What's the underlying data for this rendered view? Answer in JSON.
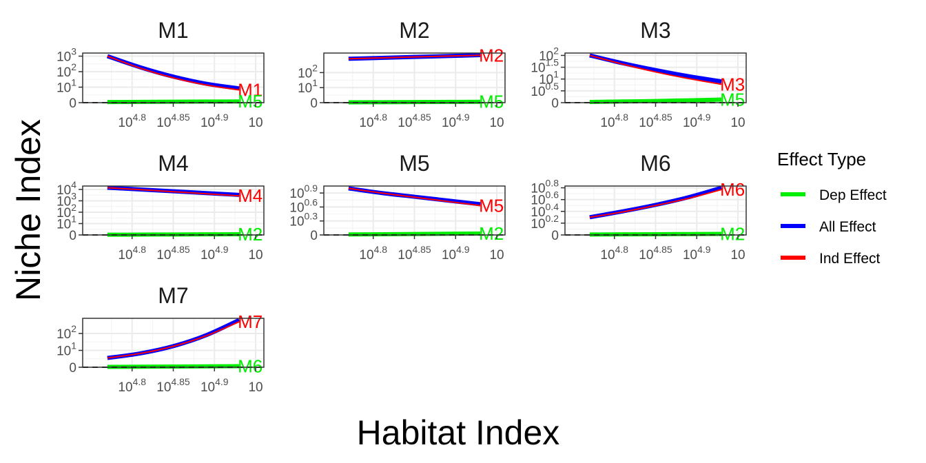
{
  "chart_data": {
    "type": "line",
    "xlabel": "Habitat Index",
    "ylabel": "Niche Index",
    "x_scale": "log10",
    "xlim": [
      4.74,
      4.96
    ],
    "x_ticks": [
      {
        "base": "10",
        "exp": "4.8"
      },
      {
        "base": "10",
        "exp": "4.85"
      },
      {
        "base": "10",
        "exp": "4.9"
      },
      {
        "base": "10",
        "exp": ""
      }
    ],
    "x_tick_values": [
      4.8,
      4.85,
      4.9,
      4.95
    ],
    "legend": {
      "title": "Effect Type",
      "position": "right",
      "entries": [
        {
          "label": "Dep Effect",
          "color": "#00ee00"
        },
        {
          "label": "All Effect",
          "color": "#0000ff"
        },
        {
          "label": "Ind Effect",
          "color": "#ff0000"
        }
      ]
    },
    "grid": true,
    "reference_line": {
      "y": 0,
      "style": "dashed"
    },
    "panels": [
      {
        "title": "M1",
        "y_scale": "log10(y+1)",
        "y_ticks": [
          {
            "base": "0",
            "exp": ""
          },
          {
            "base": "10",
            "exp": "1"
          },
          {
            "base": "10",
            "exp": "2"
          },
          {
            "base": "10",
            "exp": "3"
          }
        ],
        "y_tick_values": [
          0,
          1,
          2,
          3
        ],
        "ylim": [
          0,
          3.2
        ],
        "series": [
          {
            "name": "All Effect",
            "x": [
              4.77,
              4.81,
              4.85,
              4.89,
              4.93
            ],
            "y": [
              3.0,
              2.28,
              1.68,
              1.22,
              0.92
            ]
          },
          {
            "name": "Ind Effect",
            "x": [
              4.77,
              4.81,
              4.85,
              4.89,
              4.93
            ],
            "y": [
              3.0,
              2.22,
              1.6,
              1.14,
              0.82
            ]
          },
          {
            "name": "Dep Effect",
            "x": [
              4.77,
              4.81,
              4.85,
              4.89,
              4.93
            ],
            "y": [
              0.04,
              0.05,
              0.06,
              0.07,
              0.08
            ]
          }
        ],
        "end_labels": [
          {
            "text": "M1",
            "series": "Ind Effect"
          },
          {
            "text": "M5",
            "series": "Dep Effect"
          }
        ]
      },
      {
        "title": "M2",
        "y_scale": "log10(y+1)",
        "y_ticks": [
          {
            "base": "0",
            "exp": ""
          },
          {
            "base": "10",
            "exp": "1"
          },
          {
            "base": "10",
            "exp": "2"
          }
        ],
        "y_tick_values": [
          0,
          1,
          2
        ],
        "ylim": [
          0,
          3.3
        ],
        "series": [
          {
            "name": "All Effect",
            "x": [
              4.77,
              4.81,
              4.85,
              4.89,
              4.93
            ],
            "y": [
              2.92,
              2.98,
              3.04,
              3.1,
              3.16
            ]
          },
          {
            "name": "Ind Effect",
            "x": [
              4.77,
              4.81,
              4.85,
              4.89,
              4.93
            ],
            "y": [
              2.92,
              2.98,
              3.04,
              3.1,
              3.15
            ]
          },
          {
            "name": "Dep Effect",
            "x": [
              4.77,
              4.81,
              4.85,
              4.89,
              4.93
            ],
            "y": [
              0.02,
              0.03,
              0.04,
              0.05,
              0.06
            ]
          }
        ],
        "end_labels": [
          {
            "text": "M2",
            "series": "Ind Effect"
          },
          {
            "text": "M5",
            "series": "Dep Effect"
          }
        ]
      },
      {
        "title": "M3",
        "y_scale": "log10(y+1)",
        "y_ticks": [
          {
            "base": "0",
            "exp": ""
          },
          {
            "base": "10",
            "exp": "0.5"
          },
          {
            "base": "10",
            "exp": "1"
          },
          {
            "base": "10",
            "exp": "1.5"
          },
          {
            "base": "10",
            "exp": "2"
          }
        ],
        "y_tick_values": [
          0,
          0.5,
          1,
          1.5,
          2
        ],
        "ylim": [
          0,
          2.1
        ],
        "series": [
          {
            "name": "All Effect",
            "x": [
              4.77,
              4.81,
              4.85,
              4.89,
              4.93
            ],
            "y": [
              2.0,
              1.67,
              1.38,
              1.12,
              0.9
            ]
          },
          {
            "name": "Ind Effect",
            "x": [
              4.77,
              4.81,
              4.85,
              4.89,
              4.93
            ],
            "y": [
              2.0,
              1.63,
              1.3,
              1.02,
              0.78
            ]
          },
          {
            "name": "Dep Effect",
            "x": [
              4.77,
              4.81,
              4.85,
              4.89,
              4.93
            ],
            "y": [
              0.03,
              0.05,
              0.07,
              0.1,
              0.13
            ]
          }
        ],
        "end_labels": [
          {
            "text": "M3",
            "series": "Ind Effect"
          },
          {
            "text": "M5",
            "series": "Dep Effect"
          }
        ]
      },
      {
        "title": "M4",
        "y_scale": "log10(y+1)",
        "y_ticks": [
          {
            "base": "0",
            "exp": ""
          },
          {
            "base": "10",
            "exp": "1"
          },
          {
            "base": "10",
            "exp": "2"
          },
          {
            "base": "10",
            "exp": "3"
          },
          {
            "base": "10",
            "exp": "4"
          }
        ],
        "y_tick_values": [
          0,
          1,
          2,
          3,
          4
        ],
        "ylim": [
          0,
          4.3
        ],
        "series": [
          {
            "name": "All Effect",
            "x": [
              4.77,
              4.81,
              4.85,
              4.89,
              4.93
            ],
            "y": [
              4.15,
              4.0,
              3.84,
              3.68,
              3.52
            ]
          },
          {
            "name": "Ind Effect",
            "x": [
              4.77,
              4.81,
              4.85,
              4.89,
              4.93
            ],
            "y": [
              4.15,
              3.98,
              3.8,
              3.62,
              3.44
            ]
          },
          {
            "name": "Dep Effect",
            "x": [
              4.77,
              4.81,
              4.85,
              4.89,
              4.93
            ],
            "y": [
              0.02,
              0.03,
              0.04,
              0.05,
              0.06
            ]
          }
        ],
        "end_labels": [
          {
            "text": "M4",
            "series": "Ind Effect"
          },
          {
            "text": "M2",
            "series": "Dep Effect"
          }
        ]
      },
      {
        "title": "M5",
        "y_scale": "log10(y+1)",
        "y_ticks": [
          {
            "base": "0",
            "exp": ""
          },
          {
            "base": "10",
            "exp": "0.3"
          },
          {
            "base": "10",
            "exp": "0.6"
          },
          {
            "base": "10",
            "exp": "0.9"
          }
        ],
        "y_tick_values": [
          0,
          0.3,
          0.6,
          0.9
        ],
        "ylim": [
          0,
          1.05
        ],
        "series": [
          {
            "name": "All Effect",
            "x": [
              4.77,
              4.81,
              4.85,
              4.89,
              4.93
            ],
            "y": [
              1.0,
              0.9,
              0.82,
              0.74,
              0.66
            ]
          },
          {
            "name": "Ind Effect",
            "x": [
              4.77,
              4.81,
              4.85,
              4.89,
              4.93
            ],
            "y": [
              1.0,
              0.9,
              0.81,
              0.72,
              0.63
            ]
          },
          {
            "name": "Dep Effect",
            "x": [
              4.77,
              4.81,
              4.85,
              4.89,
              4.93
            ],
            "y": [
              0.01,
              0.015,
              0.02,
              0.025,
              0.03
            ]
          }
        ],
        "end_labels": [
          {
            "text": "M5",
            "series": "Ind Effect"
          },
          {
            "text": "M2",
            "series": "Dep Effect"
          }
        ]
      },
      {
        "title": "M6",
        "y_scale": "log10(y+1)",
        "y_ticks": [
          {
            "base": "0",
            "exp": ""
          },
          {
            "base": "10",
            "exp": "0.2"
          },
          {
            "base": "10",
            "exp": "0.4"
          },
          {
            "base": "10",
            "exp": "0.6"
          },
          {
            "base": "10",
            "exp": "0.8"
          }
        ],
        "y_tick_values": [
          0,
          0.2,
          0.4,
          0.6,
          0.8
        ],
        "ylim": [
          0,
          0.83
        ],
        "series": [
          {
            "name": "All Effect",
            "x": [
              4.77,
              4.81,
              4.85,
              4.89,
              4.93
            ],
            "y": [
              0.3,
              0.4,
              0.51,
              0.64,
              0.8
            ]
          },
          {
            "name": "Ind Effect",
            "x": [
              4.77,
              4.81,
              4.85,
              4.89,
              4.93
            ],
            "y": [
              0.3,
              0.39,
              0.5,
              0.62,
              0.77
            ]
          },
          {
            "name": "Dep Effect",
            "x": [
              4.77,
              4.81,
              4.85,
              4.89,
              4.93
            ],
            "y": [
              0.008,
              0.01,
              0.012,
              0.015,
              0.018
            ]
          }
        ],
        "end_labels": [
          {
            "text": "M6",
            "series": "Ind Effect"
          },
          {
            "text": "M2",
            "series": "Dep Effect"
          }
        ]
      },
      {
        "title": "M7",
        "y_scale": "log10(y+1)",
        "y_ticks": [
          {
            "base": "0",
            "exp": ""
          },
          {
            "base": "10",
            "exp": "1"
          },
          {
            "base": "10",
            "exp": "2"
          }
        ],
        "y_tick_values": [
          0,
          1,
          2
        ],
        "ylim": [
          0,
          2.9
        ],
        "series": [
          {
            "name": "All Effect",
            "x": [
              4.77,
              4.81,
              4.85,
              4.89,
              4.93
            ],
            "y": [
              0.55,
              0.82,
              1.25,
              1.9,
              2.8
            ]
          },
          {
            "name": "Ind Effect",
            "x": [
              4.77,
              4.81,
              4.85,
              4.89,
              4.93
            ],
            "y": [
              0.55,
              0.82,
              1.24,
              1.86,
              2.7
            ]
          },
          {
            "name": "Dep Effect",
            "x": [
              4.77,
              4.81,
              4.85,
              4.89,
              4.93
            ],
            "y": [
              0.02,
              0.03,
              0.04,
              0.05,
              0.06
            ]
          }
        ],
        "end_labels": [
          {
            "text": "M7",
            "series": "Ind Effect"
          },
          {
            "text": "M6",
            "series": "Dep Effect"
          }
        ]
      }
    ]
  }
}
